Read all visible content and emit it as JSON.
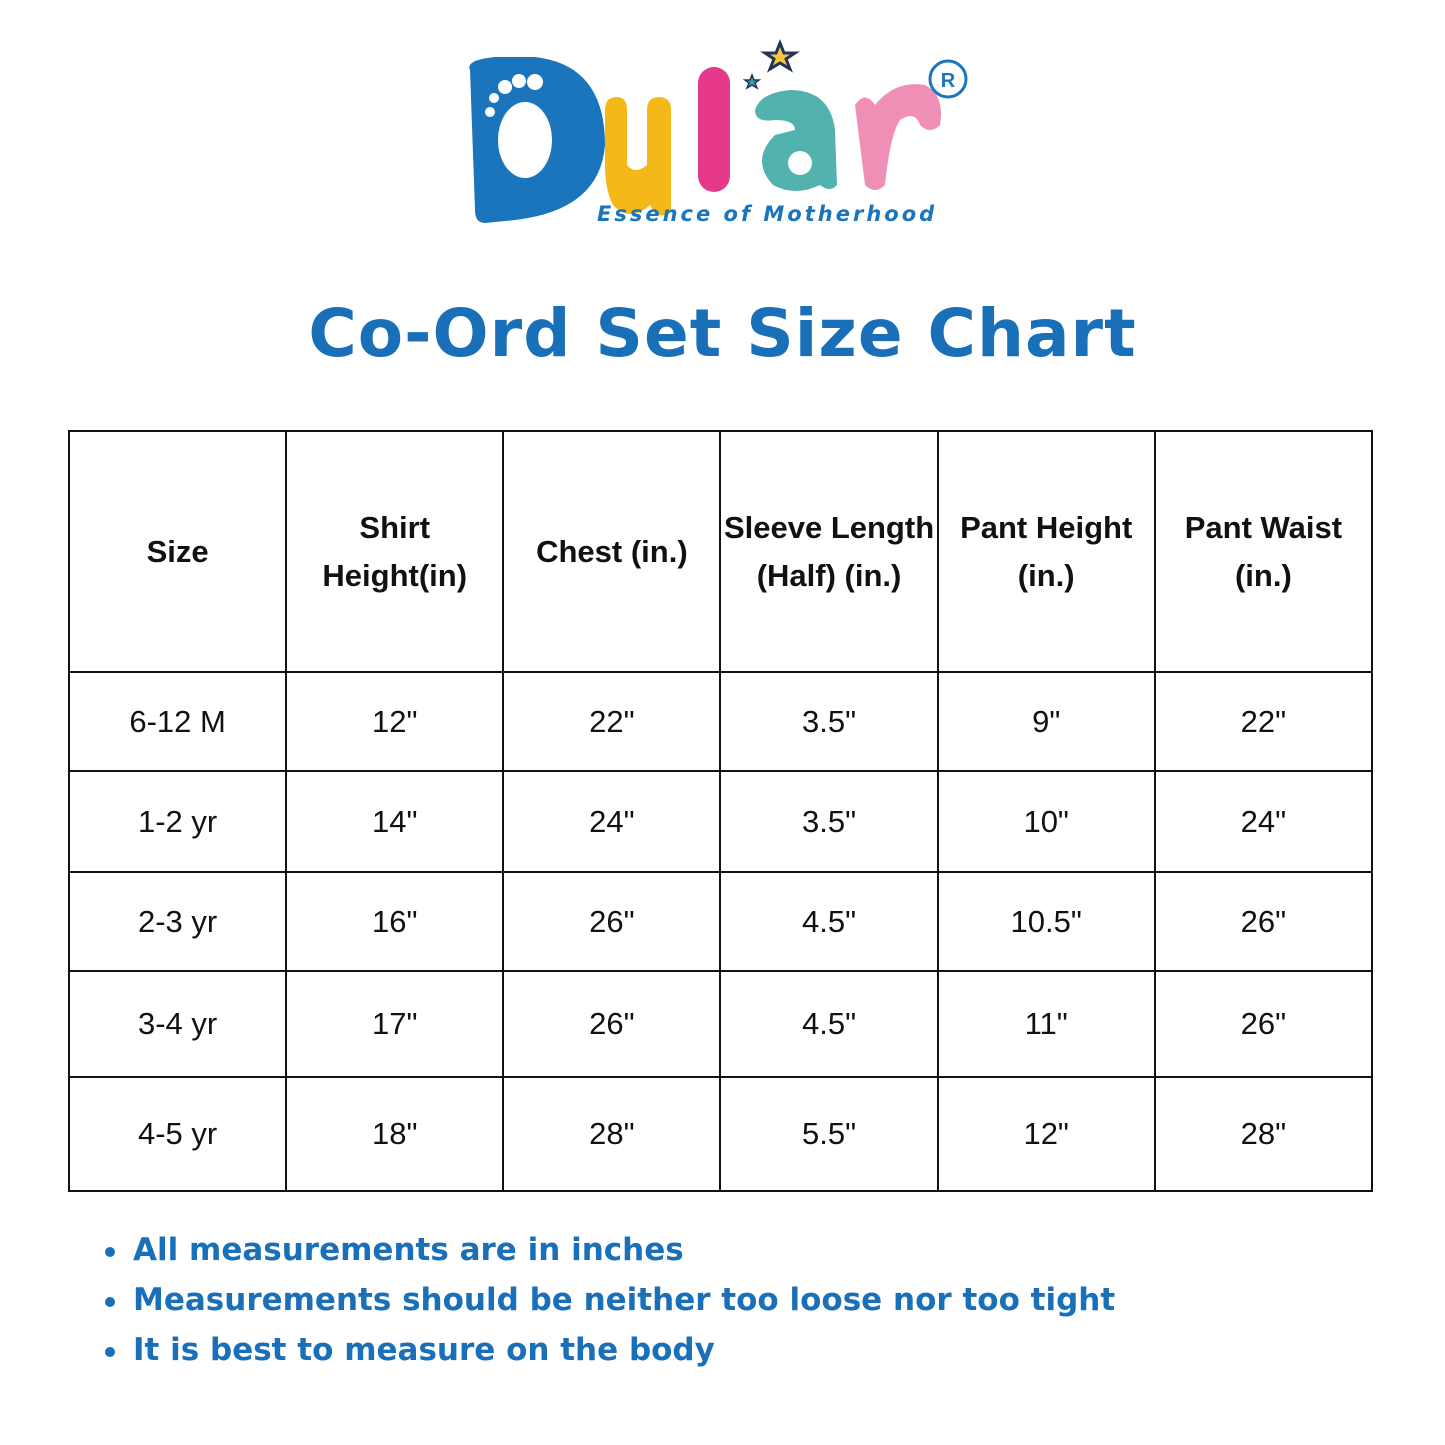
{
  "brand": {
    "name": "Dular",
    "tagline": "Essence of Motherhood",
    "registered_mark": "R",
    "colors": {
      "d": "#1a75bc",
      "u": "#f4b919",
      "l": "#e6398a",
      "a": "#52b3ae",
      "r": "#f08fb5",
      "text": "#1a6fb9"
    }
  },
  "title": "Co-Ord Set Size Chart",
  "table": {
    "headers": [
      "Size",
      "Shirt Height(in)",
      "Chest (in.)",
      "Sleeve Length (Half) (in.)",
      "Pant Height (in.)",
      "Pant Waist (in.)"
    ],
    "rows": [
      [
        "6-12 M",
        "12\"",
        "22\"",
        "3.5\"",
        "9\"",
        "22\""
      ],
      [
        "1-2 yr",
        "14\"",
        "24\"",
        "3.5\"",
        "10\"",
        "24\""
      ],
      [
        "2-3 yr",
        "16\"",
        "26\"",
        "4.5\"",
        "10.5\"",
        "26\""
      ],
      [
        "3-4 yr",
        "17\"",
        "26\"",
        "4.5\"",
        "11\"",
        "26\""
      ],
      [
        "4-5 yr",
        "18\"",
        "28\"",
        "5.5\"",
        "12\"",
        "28\""
      ]
    ]
  },
  "notes": [
    "All measurements are in inches",
    "Measurements should be neither too loose nor too tight",
    "It is best to measure on the body"
  ]
}
